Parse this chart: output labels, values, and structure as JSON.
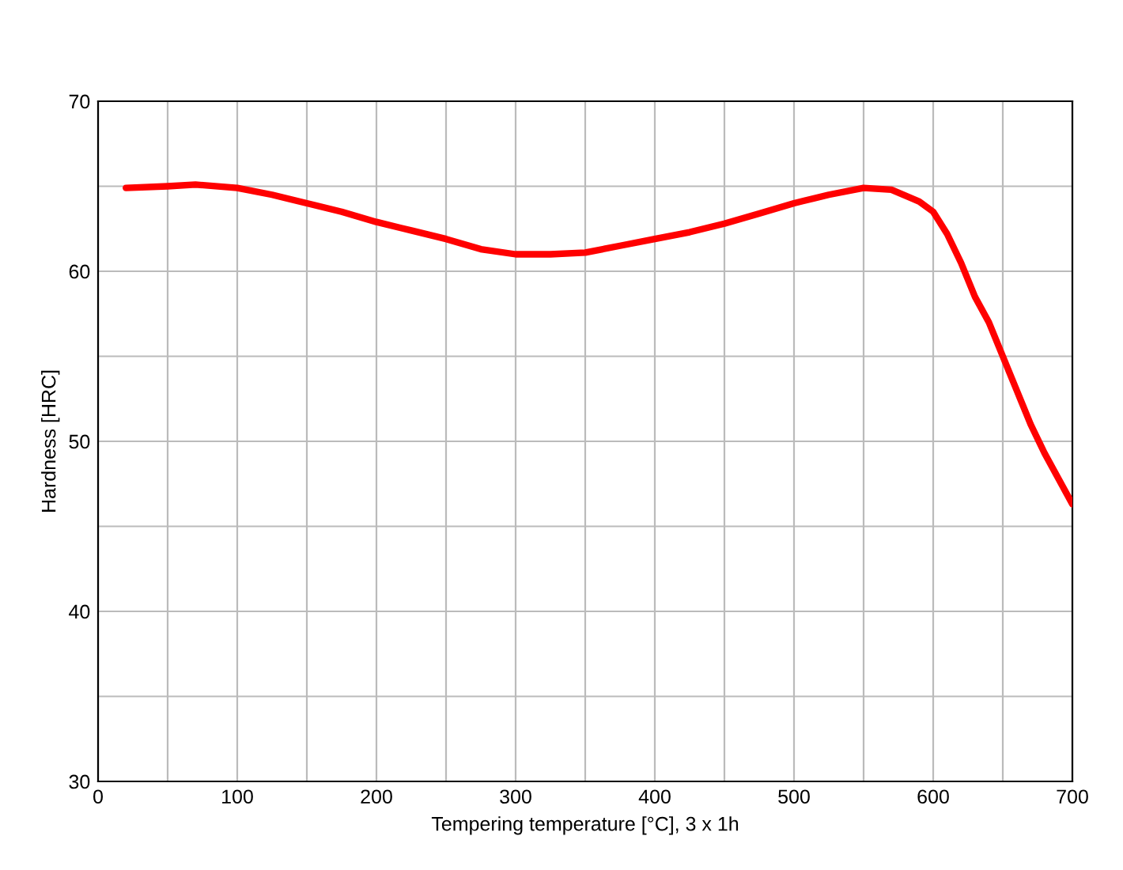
{
  "chart_data": {
    "type": "line",
    "xlabel": "Tempering temperature [°C], 3 x 1h",
    "ylabel": "Hardness [HRC]",
    "x": [
      20,
      50,
      70,
      100,
      125,
      150,
      175,
      200,
      225,
      250,
      275,
      300,
      325,
      350,
      375,
      400,
      425,
      450,
      475,
      500,
      525,
      550,
      570,
      590,
      600,
      610,
      620,
      630,
      640,
      650,
      660,
      670,
      680,
      690,
      700
    ],
    "series": [
      {
        "color": "#ff0000",
        "values": [
          64.9,
          65.0,
          65.1,
          64.9,
          64.5,
          64.0,
          63.5,
          62.9,
          62.4,
          61.9,
          61.3,
          61.0,
          61.0,
          61.1,
          61.5,
          61.9,
          62.3,
          62.8,
          63.4,
          64.0,
          64.5,
          64.9,
          64.8,
          64.1,
          63.5,
          62.2,
          60.5,
          58.5,
          57.0,
          55.0,
          53.0,
          51.0,
          49.3,
          47.8,
          46.3
        ]
      }
    ],
    "xlim": [
      0,
      700
    ],
    "ylim": [
      30,
      70
    ],
    "xticks": [
      0,
      {
        "value": 50,
        "label": null
      },
      100,
      {
        "value": 150,
        "label": null
      },
      200,
      {
        "value": 250,
        "label": null
      },
      300,
      {
        "value": 350,
        "label": null
      },
      400,
      {
        "value": 450,
        "label": null
      },
      500,
      {
        "value": 550,
        "label": null
      },
      600,
      {
        "value": 650,
        "label": null
      },
      700
    ],
    "yticks": [
      30,
      {
        "value": 35,
        "label": null
      },
      40,
      {
        "value": 45,
        "label": null
      },
      50,
      {
        "value": 55,
        "label": null
      },
      60,
      {
        "value": 65,
        "label": null
      },
      70
    ],
    "grid": true,
    "line_style": "solid"
  }
}
